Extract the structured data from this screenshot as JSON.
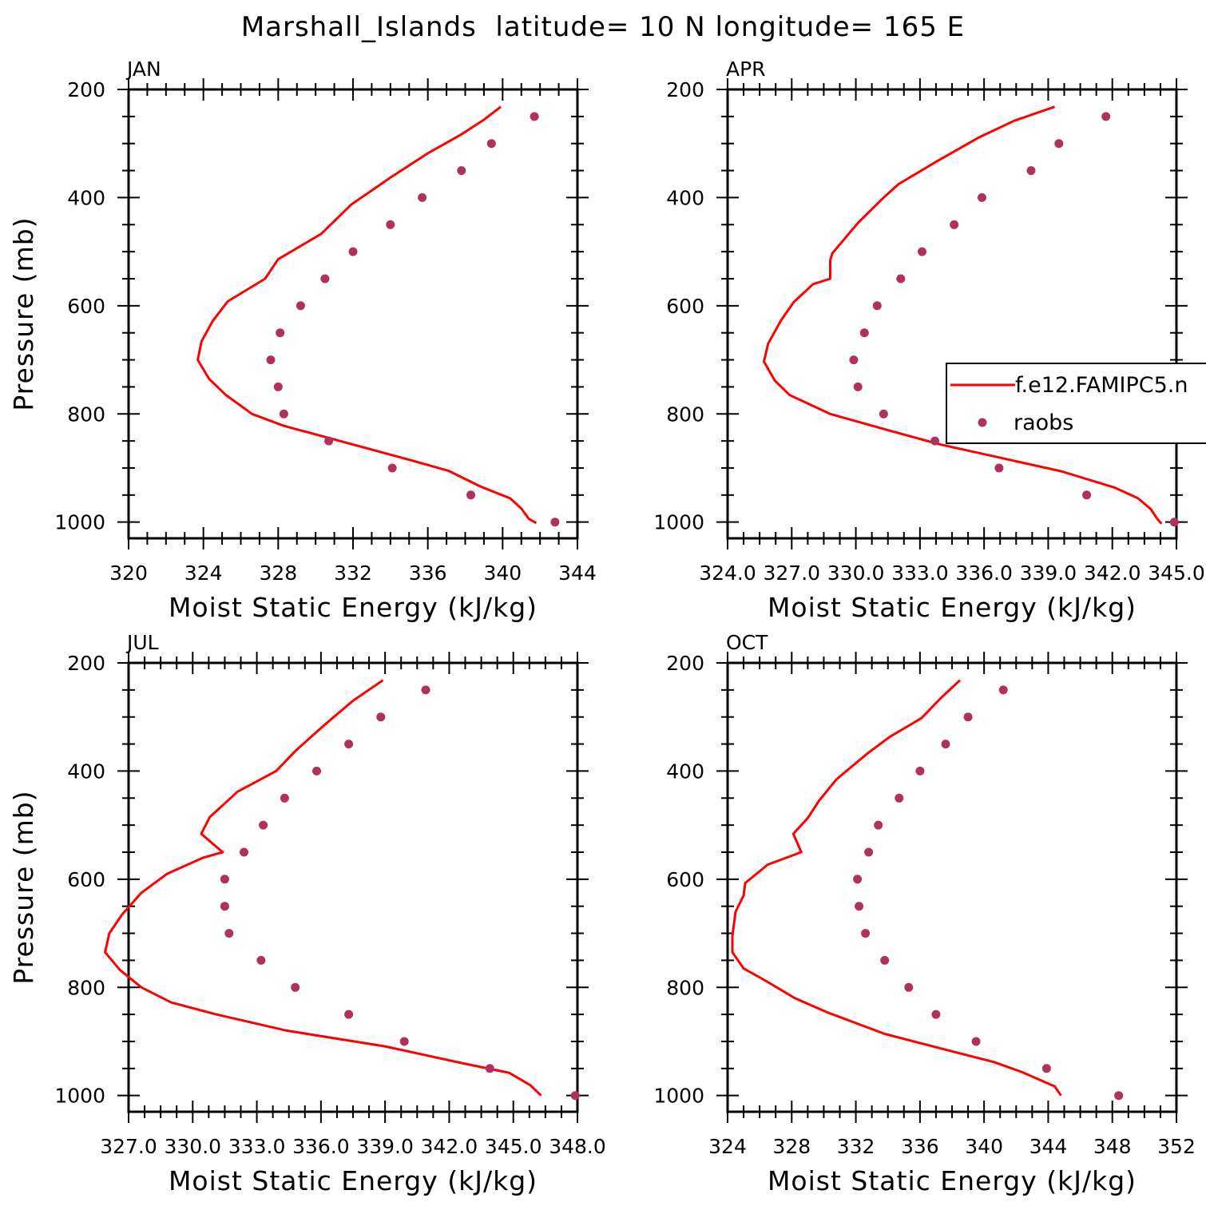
{
  "title": "Marshall_Islands  latitude= 10 N longitude= 165 E",
  "colors": {
    "model_line": "#ff0000",
    "raobs_marker": "#b03060",
    "axes": "#000000"
  },
  "legend": {
    "model_label": "f.e12.FAMIPC5.n",
    "raobs_label": "raobs",
    "placement": "right of APR panel"
  },
  "chart_data": [
    {
      "type": "line",
      "panel_title": "JAN",
      "xlabel": "Moist Static Energy (kJ/kg)",
      "ylabel": "Pressure (mb)",
      "xlim": [
        320,
        344
      ],
      "ylim": [
        1030,
        200
      ],
      "x_ticks": [
        320,
        324,
        328,
        332,
        336,
        340,
        344
      ],
      "x_tick_labels": [
        "320",
        "324",
        "328",
        "332",
        "336",
        "340",
        "344"
      ],
      "y_ticks": [
        200,
        400,
        600,
        800,
        1000
      ],
      "y_tick_labels": [
        "200",
        "400",
        "600",
        "800",
        "1000"
      ],
      "series": [
        {
          "name": "f.e12.FAMIPC5.n",
          "style": "line",
          "points": [
            [
              339.9,
              232
            ],
            [
              339.0,
              256
            ],
            [
              337.8,
              283
            ],
            [
              336.0,
              318
            ],
            [
              334.0,
              363
            ],
            [
              331.9,
              413
            ],
            [
              330.3,
              467
            ],
            [
              328.0,
              514
            ],
            [
              327.3,
              550
            ],
            [
              325.3,
              592
            ],
            [
              324.5,
              628
            ],
            [
              323.9,
              666
            ],
            [
              323.7,
              700
            ],
            [
              324.3,
              735
            ],
            [
              325.2,
              765
            ],
            [
              326.6,
              800
            ],
            [
              328.3,
              822
            ],
            [
              334.5,
              880
            ],
            [
              337.1,
              905
            ],
            [
              338.8,
              934
            ],
            [
              340.4,
              956
            ],
            [
              341.0,
              975
            ],
            [
              341.4,
              994
            ],
            [
              341.8,
              1002
            ]
          ]
        },
        {
          "name": "raobs",
          "style": "markers",
          "points": [
            [
              341.7,
              250
            ],
            [
              339.4,
              300
            ],
            [
              337.8,
              350
            ],
            [
              335.7,
              400
            ],
            [
              334.0,
              450
            ],
            [
              332.0,
              500
            ],
            [
              330.5,
              550
            ],
            [
              329.2,
              600
            ],
            [
              328.1,
              650
            ],
            [
              327.6,
              700
            ],
            [
              328.0,
              750
            ],
            [
              328.3,
              800
            ],
            [
              330.7,
              850
            ],
            [
              334.1,
              900
            ],
            [
              338.3,
              950
            ],
            [
              342.8,
              1000
            ]
          ]
        }
      ]
    },
    {
      "type": "line",
      "panel_title": "APR",
      "xlabel": "Moist Static Energy (kJ/kg)",
      "ylabel": "",
      "xlim": [
        324,
        345
      ],
      "ylim": [
        1030,
        200
      ],
      "x_ticks": [
        324,
        327,
        330,
        333,
        336,
        339,
        342,
        345
      ],
      "x_tick_labels": [
        "324.0",
        "327.0",
        "330.0",
        "333.0",
        "336.0",
        "339.0",
        "342.0",
        "345.0"
      ],
      "y_ticks": [
        200,
        400,
        600,
        800,
        1000
      ],
      "y_tick_labels": [
        "200",
        "400",
        "600",
        "800",
        "1000"
      ],
      "series": [
        {
          "name": "f.e12.FAMIPC5.n",
          "style": "line",
          "points": [
            [
              339.3,
              232
            ],
            [
              337.4,
              258
            ],
            [
              335.7,
              290
            ],
            [
              333.7,
              335
            ],
            [
              332.0,
              375
            ],
            [
              331.3,
              400
            ],
            [
              330.1,
              447
            ],
            [
              328.9,
              503
            ],
            [
              328.8,
              516
            ],
            [
              328.8,
              550
            ],
            [
              328.0,
              560
            ],
            [
              327.1,
              593
            ],
            [
              326.5,
              627
            ],
            [
              325.9,
              670
            ],
            [
              325.7,
              703
            ],
            [
              326.2,
              738
            ],
            [
              326.9,
              765
            ],
            [
              328.8,
              800
            ],
            [
              331.5,
              830
            ],
            [
              333.9,
              856
            ],
            [
              339.6,
              906
            ],
            [
              342.1,
              936
            ],
            [
              343.2,
              956
            ],
            [
              343.8,
              976
            ],
            [
              344.1,
              994
            ],
            [
              344.3,
              1003
            ]
          ]
        },
        {
          "name": "raobs",
          "style": "markers",
          "points": [
            [
              341.7,
              250
            ],
            [
              339.5,
              300
            ],
            [
              338.2,
              350
            ],
            [
              335.9,
              400
            ],
            [
              334.6,
              450
            ],
            [
              333.1,
              500
            ],
            [
              332.1,
              550
            ],
            [
              331.0,
              600
            ],
            [
              330.4,
              650
            ],
            [
              329.9,
              700
            ],
            [
              330.1,
              750
            ],
            [
              331.3,
              800
            ],
            [
              333.7,
              850
            ],
            [
              336.7,
              900
            ],
            [
              340.8,
              950
            ],
            [
              344.9,
              1000
            ]
          ]
        }
      ]
    },
    {
      "type": "line",
      "panel_title": "JUL",
      "xlabel": "Moist Static Energy (kJ/kg)",
      "ylabel": "Pressure (mb)",
      "xlim": [
        327,
        348
      ],
      "ylim": [
        1030,
        200
      ],
      "x_ticks": [
        327,
        330,
        333,
        336,
        339,
        342,
        345,
        348
      ],
      "x_tick_labels": [
        "327.0",
        "330.0",
        "333.0",
        "336.0",
        "339.0",
        "342.0",
        "345.0",
        "348.0"
      ],
      "y_ticks": [
        200,
        400,
        600,
        800,
        1000
      ],
      "y_tick_labels": [
        "200",
        "400",
        "600",
        "800",
        "1000"
      ],
      "series": [
        {
          "name": "f.e12.FAMIPC5.n",
          "style": "line",
          "points": [
            [
              338.9,
              232
            ],
            [
              337.5,
              270
            ],
            [
              336.1,
              317
            ],
            [
              334.8,
              363
            ],
            [
              333.9,
              400
            ],
            [
              332.1,
              438
            ],
            [
              330.8,
              485
            ],
            [
              330.4,
              516
            ],
            [
              331.4,
              550
            ],
            [
              330.5,
              560
            ],
            [
              328.8,
              590
            ],
            [
              327.6,
              625
            ],
            [
              326.7,
              665
            ],
            [
              326.1,
              700
            ],
            [
              325.9,
              735
            ],
            [
              326.6,
              768
            ],
            [
              327.6,
              800
            ],
            [
              329.0,
              828
            ],
            [
              331.1,
              850
            ],
            [
              334.4,
              880
            ],
            [
              339.0,
              909
            ],
            [
              342.6,
              940
            ],
            [
              344.8,
              958
            ],
            [
              345.8,
              981
            ],
            [
              346.3,
              1000
            ]
          ]
        },
        {
          "name": "raobs",
          "style": "markers",
          "points": [
            [
              340.9,
              250
            ],
            [
              338.8,
              300
            ],
            [
              337.3,
              350
            ],
            [
              335.8,
              400
            ],
            [
              334.3,
              450
            ],
            [
              333.3,
              500
            ],
            [
              332.4,
              550
            ],
            [
              331.5,
              600
            ],
            [
              331.5,
              650
            ],
            [
              331.7,
              700
            ],
            [
              333.2,
              750
            ],
            [
              334.8,
              800
            ],
            [
              337.3,
              850
            ],
            [
              339.9,
              900
            ],
            [
              343.9,
              950
            ],
            [
              347.9,
              1000
            ]
          ]
        }
      ]
    },
    {
      "type": "line",
      "panel_title": "OCT",
      "xlabel": "Moist Static Energy (kJ/kg)",
      "ylabel": "",
      "xlim": [
        324,
        352
      ],
      "ylim": [
        1030,
        200
      ],
      "x_ticks": [
        324,
        328,
        332,
        336,
        340,
        344,
        348,
        352
      ],
      "x_tick_labels": [
        "324",
        "328",
        "332",
        "336",
        "340",
        "344",
        "348",
        "352"
      ],
      "y_ticks": [
        200,
        400,
        600,
        800,
        1000
      ],
      "y_tick_labels": [
        "200",
        "400",
        "600",
        "800",
        "1000"
      ],
      "series": [
        {
          "name": "f.e12.FAMIPC5.n",
          "style": "line",
          "points": [
            [
              338.5,
              232
            ],
            [
              337.3,
              265
            ],
            [
              336.1,
              302
            ],
            [
              334.1,
              337
            ],
            [
              332.7,
              368
            ],
            [
              330.8,
              415
            ],
            [
              329.7,
              455
            ],
            [
              329.0,
              487
            ],
            [
              328.1,
              516
            ],
            [
              328.6,
              550
            ],
            [
              326.5,
              573
            ],
            [
              325.1,
              607
            ],
            [
              325.0,
              630
            ],
            [
              324.5,
              660
            ],
            [
              324.3,
              705
            ],
            [
              324.3,
              735
            ],
            [
              325.0,
              765
            ],
            [
              326.5,
              790
            ],
            [
              328.2,
              820
            ],
            [
              330.2,
              846
            ],
            [
              333.8,
              886
            ],
            [
              337.7,
              916
            ],
            [
              340.6,
              938
            ],
            [
              342.4,
              957
            ],
            [
              344.4,
              983
            ],
            [
              344.8,
              1000
            ]
          ]
        },
        {
          "name": "raobs",
          "style": "markers",
          "points": [
            [
              341.2,
              250
            ],
            [
              339.0,
              300
            ],
            [
              337.6,
              350
            ],
            [
              336.0,
              400
            ],
            [
              334.7,
              450
            ],
            [
              333.4,
              500
            ],
            [
              332.8,
              550
            ],
            [
              332.1,
              600
            ],
            [
              332.2,
              650
            ],
            [
              332.6,
              700
            ],
            [
              333.8,
              750
            ],
            [
              335.3,
              800
            ],
            [
              337.0,
              850
            ],
            [
              339.5,
              900
            ],
            [
              343.9,
              950
            ],
            [
              348.4,
              1000
            ]
          ]
        }
      ]
    }
  ]
}
